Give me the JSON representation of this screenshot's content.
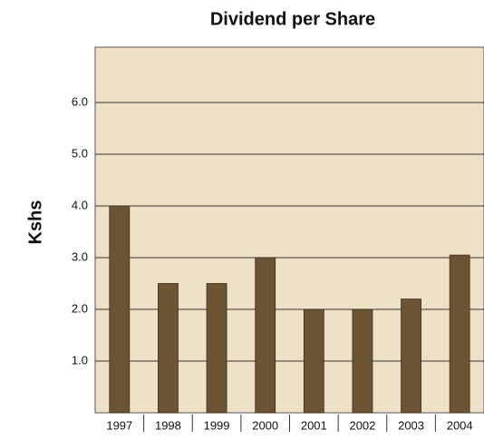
{
  "chart_data": {
    "type": "bar",
    "title": "Dividend per Share",
    "y_label": "Kshs",
    "categories": [
      "1997",
      "1998",
      "1999",
      "2000",
      "2001",
      "2002",
      "2003",
      "2004"
    ],
    "values": [
      4.0,
      2.5,
      2.5,
      3.0,
      2.0,
      2.0,
      2.2,
      3.05
    ],
    "color": "#6b5433",
    "ylim": [
      0,
      7
    ],
    "yticks": [
      {
        "value": 1,
        "label": "1.0"
      },
      {
        "value": 2,
        "label": "2.0"
      },
      {
        "value": 3,
        "label": "3.0"
      },
      {
        "value": 4,
        "label": "4.0"
      },
      {
        "value": 5,
        "label": "5.0"
      },
      {
        "value": 6,
        "label": "6.0"
      }
    ],
    "grid": true
  }
}
